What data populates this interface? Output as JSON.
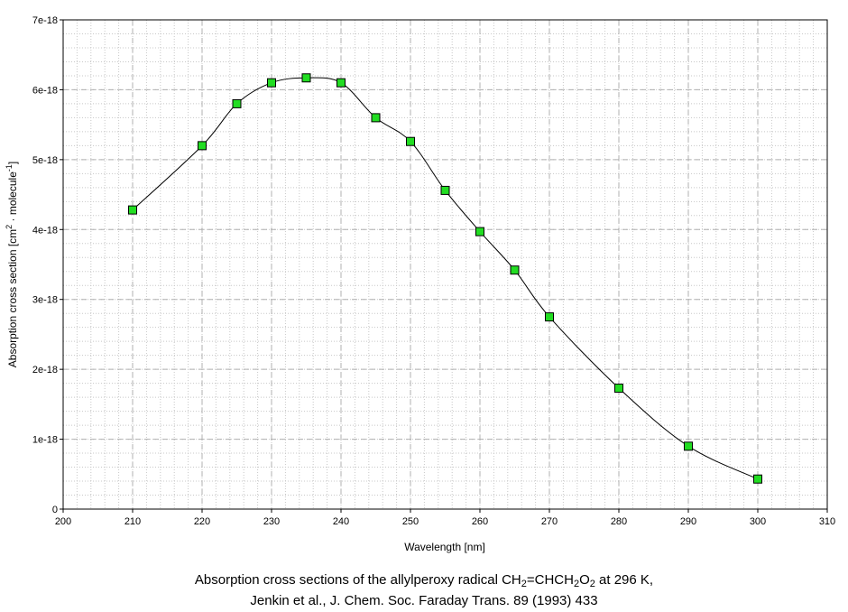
{
  "chart_data": {
    "type": "line",
    "title": "",
    "xlabel": "Wavelength [nm]",
    "ylabel_main": "Absorption cross section [cm",
    "ylabel_sup1": "2",
    "ylabel_mid": " · molecule",
    "ylabel_sup2": "-1",
    "ylabel_end": "]",
    "xlim": [
      200,
      310
    ],
    "ylim": [
      0,
      7e-18
    ],
    "x_ticks": [
      "200",
      "210",
      "220",
      "230",
      "240",
      "250",
      "260",
      "270",
      "280",
      "290",
      "300",
      "310"
    ],
    "y_ticks": [
      "0",
      "1e-18",
      "2e-18",
      "3e-18",
      "4e-18",
      "5e-18",
      "6e-18",
      "7e-18"
    ],
    "grid": true,
    "marker_color": "#22dd22",
    "series": [
      {
        "x": [
          210,
          220,
          225,
          230,
          235,
          240,
          245,
          250,
          255,
          260,
          265,
          270,
          280,
          290,
          300
        ],
        "y": [
          4.28e-18,
          5.2e-18,
          5.8e-18,
          6.1e-18,
          6.17e-18,
          6.1e-18,
          5.6e-18,
          5.26e-18,
          4.56e-18,
          3.97e-18,
          3.42e-18,
          2.75e-18,
          1.73e-18,
          9e-19,
          4.3e-19
        ]
      }
    ]
  },
  "caption": {
    "line1_a": "Absorption cross sections of the allylperoxy radical CH",
    "line1_sub1": "2",
    "line1_b": "=CHCH",
    "line1_sub2": "2",
    "line1_c": "O",
    "line1_sub3": "2",
    "line1_d": " at 296 K,",
    "line2": "Jenkin et al., J. Chem. Soc. Faraday Trans. 89 (1993) 433"
  }
}
